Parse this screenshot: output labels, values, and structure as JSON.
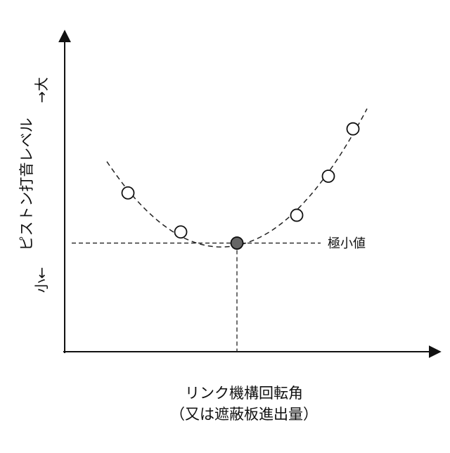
{
  "chart_data": {
    "type": "scatter",
    "title": "",
    "ylabel": "ピストン打音レベル",
    "xlabel_line1": "リンク機構回転角",
    "xlabel_line2": "（又は遮蔽板進出量）",
    "y_high_label": "→大",
    "y_low_label": "小←",
    "minimum_label": "極小値",
    "xlim": [
      0,
      100
    ],
    "ylim": [
      0,
      100
    ],
    "grid": false,
    "points": [
      {
        "x": 18,
        "y": 57,
        "kind": "open"
      },
      {
        "x": 33,
        "y": 43,
        "kind": "open"
      },
      {
        "x": 49,
        "y": 39,
        "kind": "minimum"
      },
      {
        "x": 66,
        "y": 49,
        "kind": "open"
      },
      {
        "x": 75,
        "y": 63,
        "kind": "open"
      },
      {
        "x": 82,
        "y": 80,
        "kind": "open"
      }
    ],
    "fit_curve_x_range": [
      12,
      86
    ],
    "minimum_point": {
      "x": 49,
      "y": 39
    }
  },
  "colors": {
    "axis": "#111111",
    "open_marker_fill": "#ffffff",
    "minimum_marker_fill": "#666666"
  }
}
